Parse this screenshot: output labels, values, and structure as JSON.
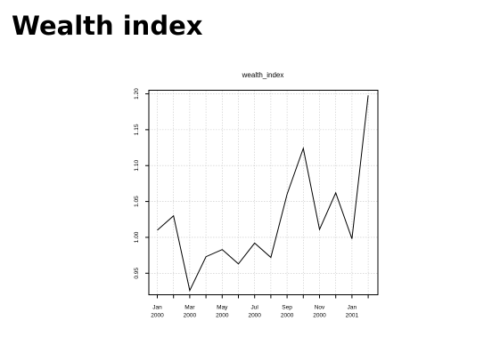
{
  "page": {
    "heading": "Wealth index"
  },
  "chart_data": {
    "type": "line",
    "title": "wealth_index",
    "xlabel": "",
    "ylabel": "",
    "x": [
      "2000-01",
      "2000-02",
      "2000-03",
      "2000-04",
      "2000-05",
      "2000-06",
      "2000-07",
      "2000-08",
      "2000-09",
      "2000-10",
      "2000-11",
      "2000-12",
      "2001-01",
      "2001-02"
    ],
    "values": [
      1.01,
      1.03,
      0.926,
      0.973,
      0.983,
      0.963,
      0.992,
      0.972,
      1.06,
      1.124,
      1.011,
      1.062,
      0.998,
      1.198
    ],
    "xlim": [
      "2000-01",
      "2001-02"
    ],
    "ylim": [
      0.92,
      1.205
    ],
    "y_ticks": [
      0.95,
      1.0,
      1.05,
      1.1,
      1.15,
      1.2
    ],
    "y_tick_labels": [
      "0.95",
      "1.00",
      "1.05",
      "1.10",
      "1.15",
      "1.20"
    ],
    "x_tick_labels": [
      {
        "month": "Jan",
        "year": "2000"
      },
      {
        "month": "Mar",
        "year": "2000"
      },
      {
        "month": "May",
        "year": "2000"
      },
      {
        "month": "Jul",
        "year": "2000"
      },
      {
        "month": "Sep",
        "year": "2000"
      },
      {
        "month": "Nov",
        "year": "2000"
      },
      {
        "month": "Jan",
        "year": "2001"
      }
    ],
    "grid": true,
    "grid_color": "#c8c8c8",
    "line_color": "#000000"
  }
}
